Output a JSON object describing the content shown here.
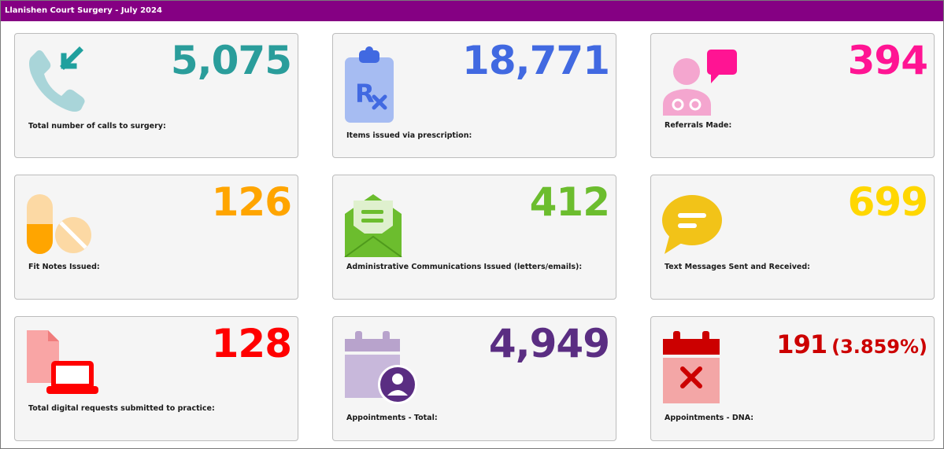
{
  "header": {
    "title": "Llanishen Court Surgery - July 2024"
  },
  "cards": [
    {
      "value": "5,075",
      "label": "Total number of calls to surgery:",
      "color": "#2a9d9b",
      "icon": "phone-incoming-icon"
    },
    {
      "value": "18,771",
      "label": "Items issued via prescription:",
      "color": "#4169e1",
      "icon": "prescription-clipboard-icon"
    },
    {
      "value": "394",
      "label": "Referrals Made:",
      "color": "#ff1493",
      "icon": "doctor-chat-icon"
    },
    {
      "value": "126",
      "label": "Fit Notes Issued:",
      "color": "#ffa500",
      "icon": "pills-icon"
    },
    {
      "value": "412",
      "label": "Administrative Communications Issued (letters/emails):",
      "color": "#6cbd2e",
      "icon": "open-envelope-icon"
    },
    {
      "value": "699",
      "label": "Text Messages Sent and Received:",
      "color": "#ffd700",
      "icon": "speech-bubble-icon"
    },
    {
      "value": "128",
      "label": "Total digital requests submitted to practice:",
      "color": "#ff0000",
      "icon": "document-laptop-icon"
    },
    {
      "value": "4,949",
      "label": "Appointments - Total:",
      "color": "#5a2d82",
      "icon": "calendar-user-icon"
    },
    {
      "value": "191",
      "pct": "(3.859%)",
      "label": "Appointments - DNA:",
      "color": "#cc0000",
      "icon": "calendar-cross-icon"
    }
  ]
}
